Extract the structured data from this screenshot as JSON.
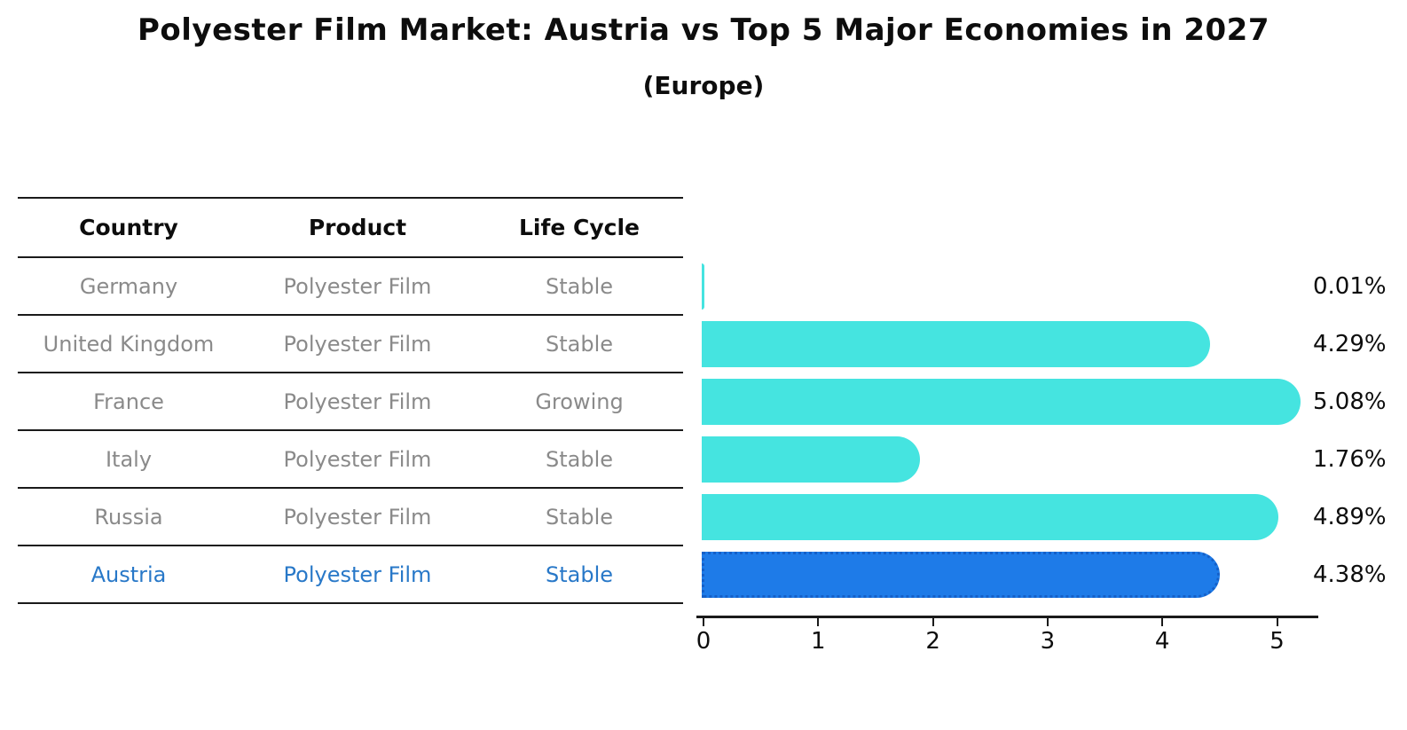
{
  "title": "Polyester Film Market: Austria vs Top 5 Major Economies in 2027",
  "subtitle": "(Europe)",
  "table": {
    "headers": [
      "Country",
      "Product",
      "Life Cycle"
    ],
    "rows": [
      {
        "country": "Germany",
        "product": "Polyester Film",
        "life_cycle": "Stable",
        "highlight": false
      },
      {
        "country": "United Kingdom",
        "product": "Polyester Film",
        "life_cycle": "Stable",
        "highlight": false
      },
      {
        "country": "France",
        "product": "Polyester Film",
        "life_cycle": "Growing",
        "highlight": false
      },
      {
        "country": "Italy",
        "product": "Polyester Film",
        "life_cycle": "Stable",
        "highlight": false
      },
      {
        "country": "Russia",
        "product": "Polyester Film",
        "life_cycle": "Stable",
        "highlight": true
      }
    ],
    "last_row": {
      "country": "Austria",
      "product": "Polyester Film",
      "life_cycle": "Stable",
      "highlight": true
    }
  },
  "chart_data": {
    "type": "bar",
    "orientation": "horizontal",
    "categories": [
      "Germany",
      "United Kingdom",
      "France",
      "Italy",
      "Russia",
      "Austria"
    ],
    "values": [
      0.01,
      4.29,
      5.08,
      1.76,
      4.89,
      4.38
    ],
    "value_labels": [
      "0.01%",
      "4.29%",
      "5.08%",
      "1.76%",
      "4.89%",
      "4.38%"
    ],
    "title": "Polyester Film Market: Austria vs Top 5 Major Economies in 2027 (Europe)",
    "xlabel": "",
    "ylabel": "",
    "x_ticks": [
      0,
      1,
      2,
      3,
      4,
      5
    ],
    "xlim": [
      0,
      5.35
    ],
    "grid": false,
    "legend": false,
    "bar_color": "#45e4e0",
    "highlight_index": 5,
    "highlight_color": "#1e7be8",
    "highlight_border_color": "#1560c8"
  },
  "colors": {
    "muted_text": "#8a8a8a",
    "highlight_text": "#2878c8",
    "heading_text": "#0d0d0d",
    "line": "#1a1a1a"
  }
}
